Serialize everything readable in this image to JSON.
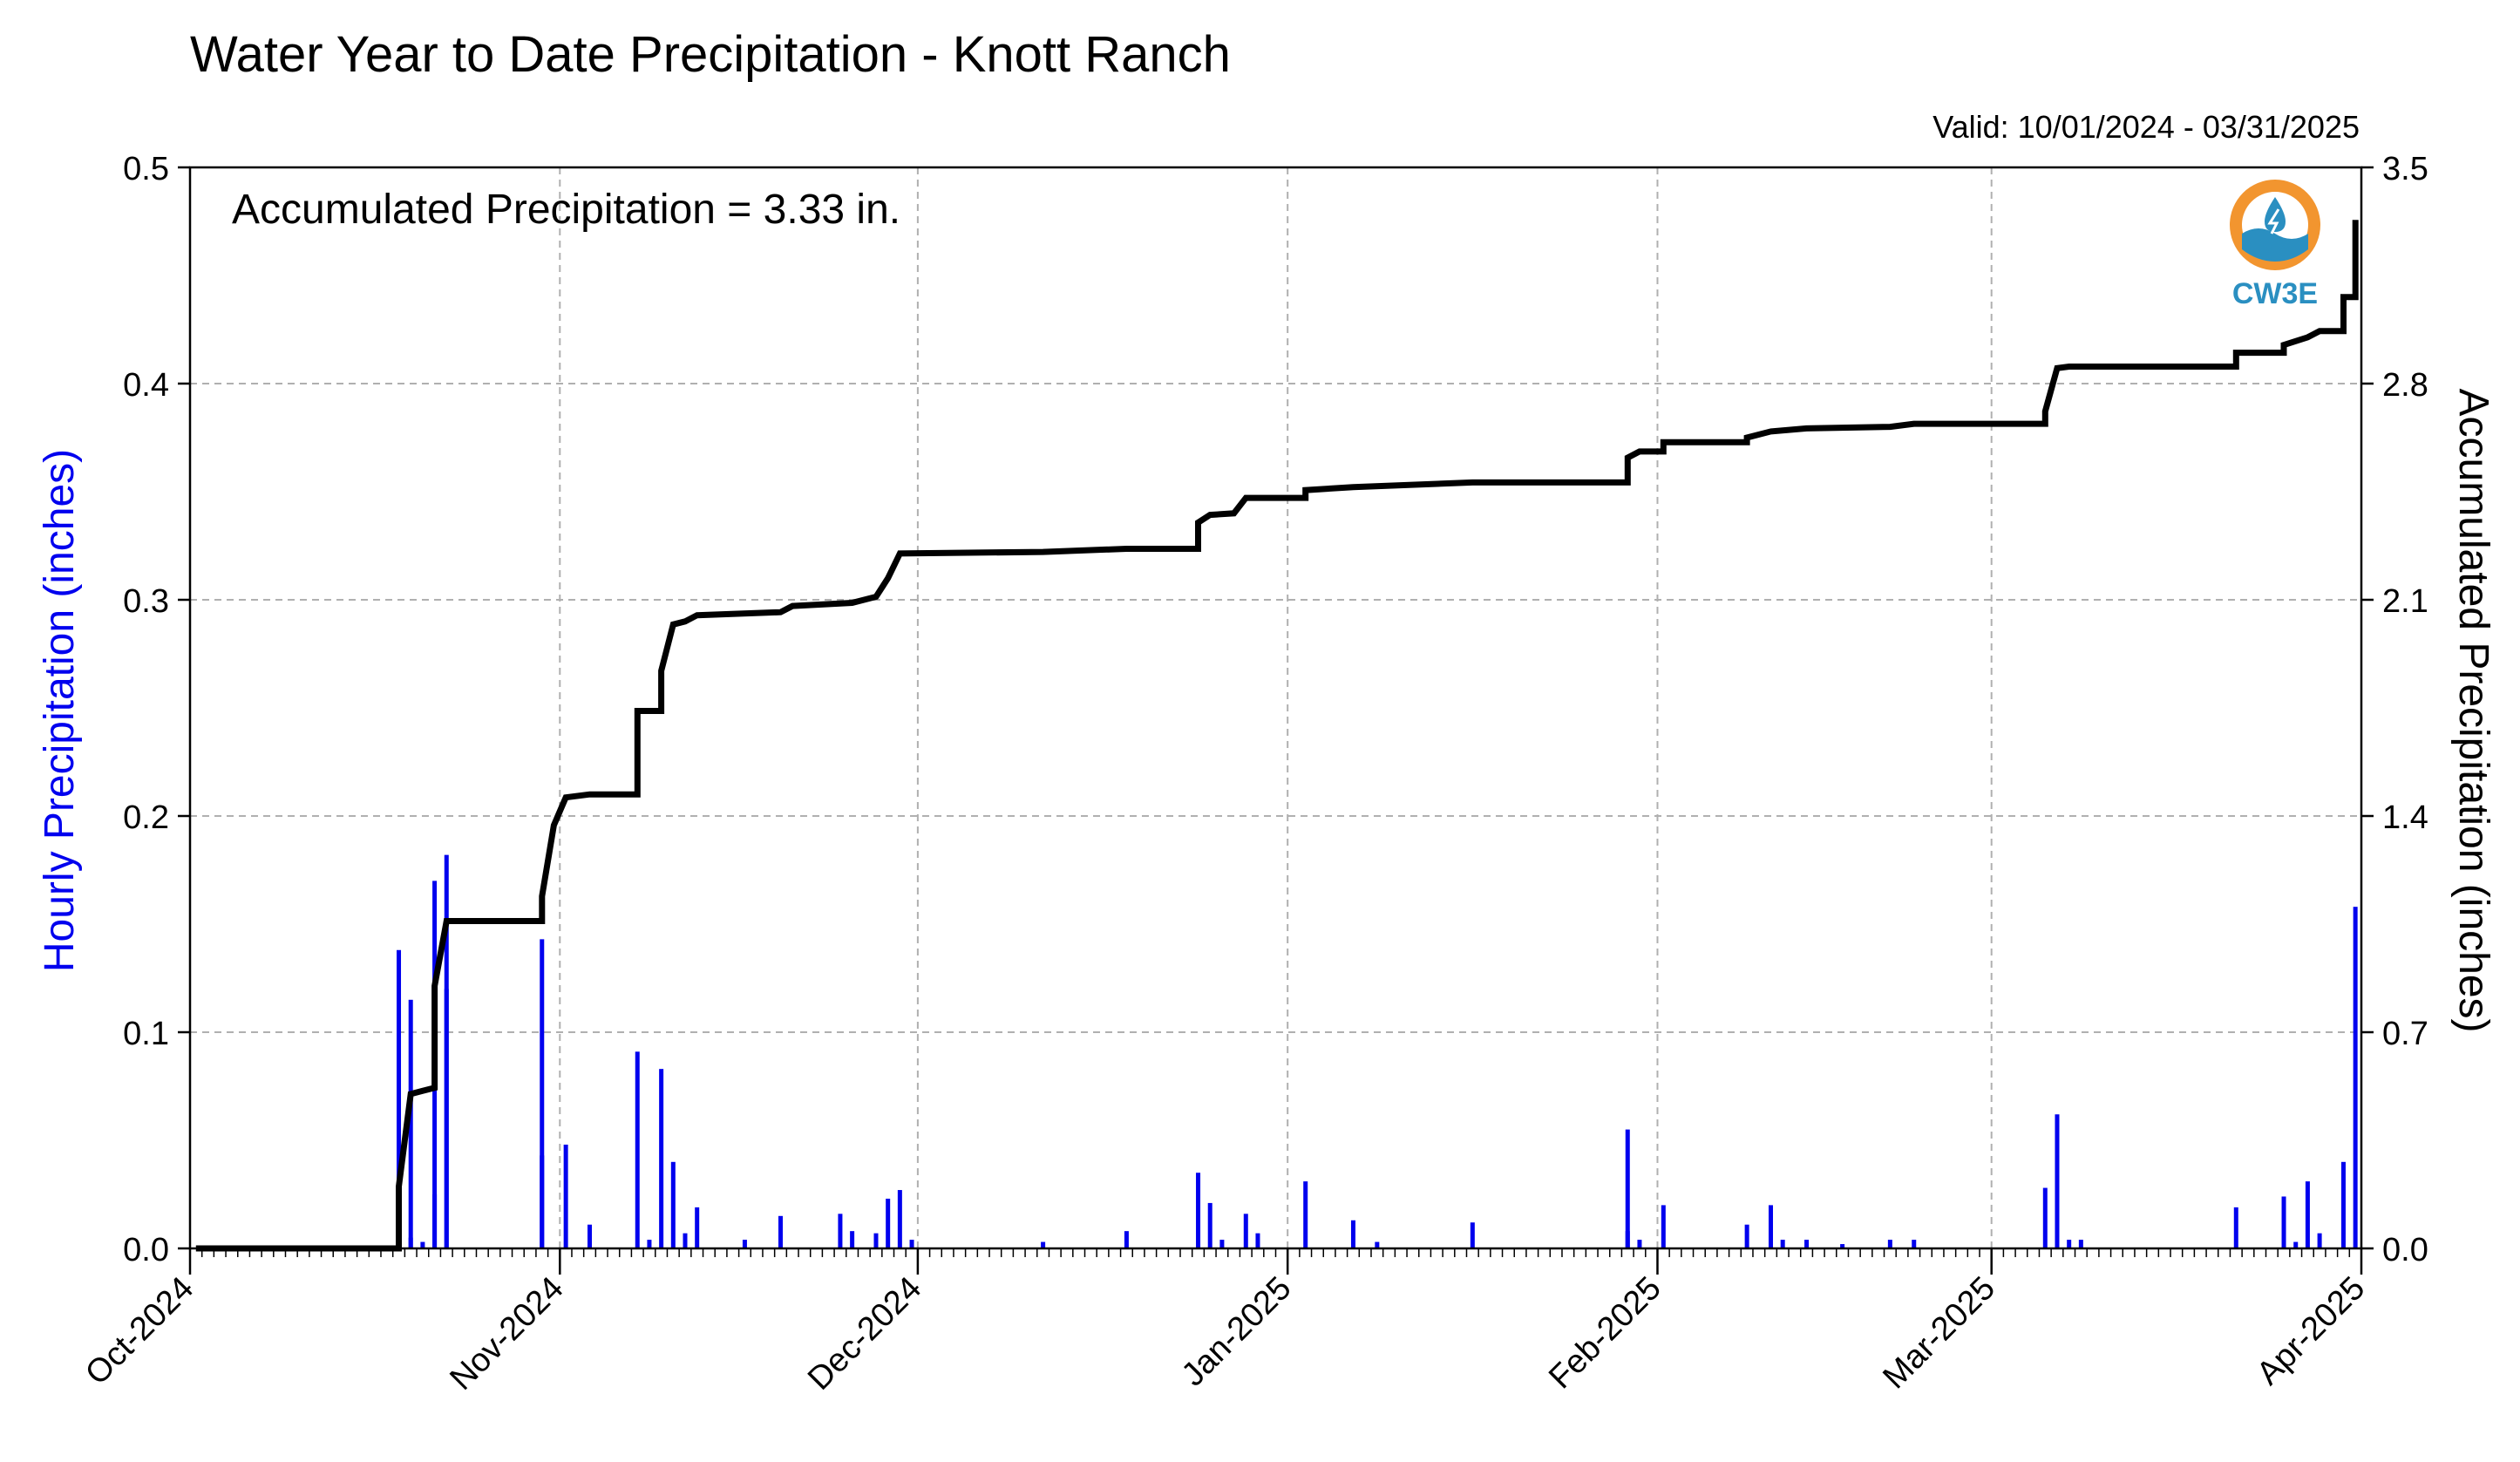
{
  "header": {
    "title": "Water Year to Date Precipitation - Knott Ranch",
    "valid": "Valid: 10/01/2024 - 03/31/2025"
  },
  "annotation": "Accumulated Precipitation = 3.33 in.",
  "logo": {
    "text": "CW3E",
    "icon": "cw3e-logo-icon",
    "colors": {
      "orange": "#f2952f",
      "blue": "#2a8fc1"
    }
  },
  "chart_data": {
    "type": "bar",
    "title": "Water Year to Date Precipitation - Knott Ranch",
    "ylabel": "Hourly Precipitation (inches)",
    "ylabel_right": "Accumulated Precipitation (inches)",
    "xlabel": "",
    "ylim": [
      0,
      0.5
    ],
    "ylim_right": [
      0,
      3.5
    ],
    "grid": true,
    "xlim": [
      "2024-10-01",
      "2025-04-01"
    ],
    "x_ticks": [
      "2024-10-01",
      "2024-11-01",
      "2024-12-01",
      "2025-01-01",
      "2025-02-01",
      "2025-03-01",
      "2025-04-01"
    ],
    "x_tick_labels": [
      "Oct-2024",
      "Nov-2024",
      "Dec-2024",
      "Jan-2025",
      "Feb-2025",
      "Mar-2025",
      "Apr-2025"
    ],
    "y_ticks_left": [
      0.0,
      0.1,
      0.2,
      0.3,
      0.4,
      0.5
    ],
    "y_tick_labels_left": [
      "0.0",
      "0.1",
      "0.2",
      "0.3",
      "0.4",
      "0.5"
    ],
    "y_ticks_right": [
      0.0,
      0.7,
      1.4,
      2.1,
      2.8,
      3.5
    ],
    "y_tick_labels_right": [
      "0.0",
      "0.7",
      "1.4",
      "2.1",
      "2.8",
      "3.5"
    ],
    "colors": {
      "hourly": "#0000ee",
      "accumulated": "#000000",
      "grid": "#b0b0b0",
      "ylabel_left": "#0000ee"
    },
    "series": [
      {
        "name": "Hourly Precipitation (inches)",
        "type": "bar",
        "axis": "left",
        "points": [
          [
            "2024-10-18",
            0.032
          ],
          [
            "2024-10-18",
            0.138
          ],
          [
            "2024-10-19",
            0.115
          ],
          [
            "2024-10-19",
            0.005
          ],
          [
            "2024-10-20",
            0.003
          ],
          [
            "2024-10-21",
            0.025
          ],
          [
            "2024-10-21",
            0.17
          ],
          [
            "2024-10-22",
            0.182
          ],
          [
            "2024-10-22",
            0.12
          ],
          [
            "2024-10-30",
            0.043
          ],
          [
            "2024-10-30",
            0.143
          ],
          [
            "2024-11-01",
            0.048
          ],
          [
            "2024-11-03",
            0.011
          ],
          [
            "2024-11-07",
            0.091
          ],
          [
            "2024-11-08",
            0.004
          ],
          [
            "2024-11-09",
            0.083
          ],
          [
            "2024-11-10",
            0.04
          ],
          [
            "2024-11-11",
            0.007
          ],
          [
            "2024-11-12",
            0.019
          ],
          [
            "2024-11-16",
            0.004
          ],
          [
            "2024-11-19",
            0.015
          ],
          [
            "2024-11-24",
            0.016
          ],
          [
            "2024-11-25",
            0.008
          ],
          [
            "2024-11-27",
            0.007
          ],
          [
            "2024-11-28",
            0.023
          ],
          [
            "2024-11-29",
            0.027
          ],
          [
            "2024-11-30",
            0.004
          ],
          [
            "2024-12-11",
            0.003
          ],
          [
            "2024-12-18",
            0.008
          ],
          [
            "2024-12-24",
            0.035
          ],
          [
            "2024-12-25",
            0.021
          ],
          [
            "2024-12-26",
            0.004
          ],
          [
            "2024-12-28",
            0.016
          ],
          [
            "2024-12-29",
            0.007
          ],
          [
            "2025-01-02",
            0.031
          ],
          [
            "2025-01-06",
            0.013
          ],
          [
            "2025-01-08",
            0.003
          ],
          [
            "2025-01-16",
            0.012
          ],
          [
            "2025-01-29",
            0.008
          ],
          [
            "2025-01-29",
            0.055
          ],
          [
            "2025-01-30",
            0.004
          ],
          [
            "2025-02-01",
            0.02
          ],
          [
            "2025-02-08",
            0.011
          ],
          [
            "2025-02-10",
            0.02
          ],
          [
            "2025-02-11",
            0.004
          ],
          [
            "2025-02-13",
            0.004
          ],
          [
            "2025-02-16",
            0.002
          ],
          [
            "2025-02-20",
            0.004
          ],
          [
            "2025-02-22",
            0.004
          ],
          [
            "2025-03-05",
            0.028
          ],
          [
            "2025-03-06",
            0.062
          ],
          [
            "2025-03-07",
            0.004
          ],
          [
            "2025-03-08",
            0.004
          ],
          [
            "2025-03-21",
            0.019
          ],
          [
            "2025-03-25",
            0.024
          ],
          [
            "2025-03-26",
            0.003
          ],
          [
            "2025-03-27",
            0.031
          ],
          [
            "2025-03-28",
            0.007
          ],
          [
            "2025-03-30",
            0.04
          ],
          [
            "2025-03-31",
            0.158
          ]
        ]
      },
      {
        "name": "Accumulated Precipitation (inches)",
        "type": "step-line",
        "axis": "right",
        "points": [
          [
            "2024-10-01",
            0.0
          ],
          [
            "2024-10-18",
            0.0
          ],
          [
            "2024-10-18",
            0.2
          ],
          [
            "2024-10-19",
            0.5
          ],
          [
            "2024-10-20",
            0.51
          ],
          [
            "2024-10-21",
            0.52
          ],
          [
            "2024-10-21",
            0.85
          ],
          [
            "2024-10-22",
            1.06
          ],
          [
            "2024-10-30",
            1.06
          ],
          [
            "2024-10-30",
            1.14
          ],
          [
            "2024-10-31",
            1.37
          ],
          [
            "2024-11-01",
            1.46
          ],
          [
            "2024-11-03",
            1.47
          ],
          [
            "2024-11-07",
            1.47
          ],
          [
            "2024-11-07",
            1.74
          ],
          [
            "2024-11-09",
            1.74
          ],
          [
            "2024-11-09",
            1.87
          ],
          [
            "2024-11-10",
            2.02
          ],
          [
            "2024-11-11",
            2.03
          ],
          [
            "2024-11-12",
            2.05
          ],
          [
            "2024-11-19",
            2.06
          ],
          [
            "2024-11-20",
            2.08
          ],
          [
            "2024-11-25",
            2.09
          ],
          [
            "2024-11-27",
            2.11
          ],
          [
            "2024-11-28",
            2.17
          ],
          [
            "2024-11-29",
            2.25
          ],
          [
            "2024-12-11",
            2.255
          ],
          [
            "2024-12-18",
            2.265
          ],
          [
            "2024-12-24",
            2.265
          ],
          [
            "2024-12-24",
            2.35
          ],
          [
            "2024-12-25",
            2.375
          ],
          [
            "2024-12-27",
            2.38
          ],
          [
            "2024-12-28",
            2.43
          ],
          [
            "2025-01-02",
            2.43
          ],
          [
            "2025-01-02",
            2.455
          ],
          [
            "2025-01-06",
            2.465
          ],
          [
            "2025-01-16",
            2.48
          ],
          [
            "2025-01-29",
            2.48
          ],
          [
            "2025-01-29",
            2.56
          ],
          [
            "2025-01-30",
            2.58
          ],
          [
            "2025-02-01",
            2.58
          ],
          [
            "2025-02-01",
            2.61
          ],
          [
            "2025-02-08",
            2.61
          ],
          [
            "2025-02-08",
            2.625
          ],
          [
            "2025-02-10",
            2.645
          ],
          [
            "2025-02-13",
            2.655
          ],
          [
            "2025-02-20",
            2.66
          ],
          [
            "2025-02-22",
            2.67
          ],
          [
            "2025-03-05",
            2.67
          ],
          [
            "2025-03-05",
            2.71
          ],
          [
            "2025-03-06",
            2.85
          ],
          [
            "2025-03-07",
            2.855
          ],
          [
            "2025-03-21",
            2.855
          ],
          [
            "2025-03-21",
            2.9
          ],
          [
            "2025-03-25",
            2.9
          ],
          [
            "2025-03-25",
            2.925
          ],
          [
            "2025-03-27",
            2.95
          ],
          [
            "2025-03-28",
            2.97
          ],
          [
            "2025-03-30",
            2.97
          ],
          [
            "2025-03-30",
            3.08
          ],
          [
            "2025-03-31",
            3.08
          ],
          [
            "2025-03-31",
            3.33
          ]
        ]
      }
    ]
  }
}
